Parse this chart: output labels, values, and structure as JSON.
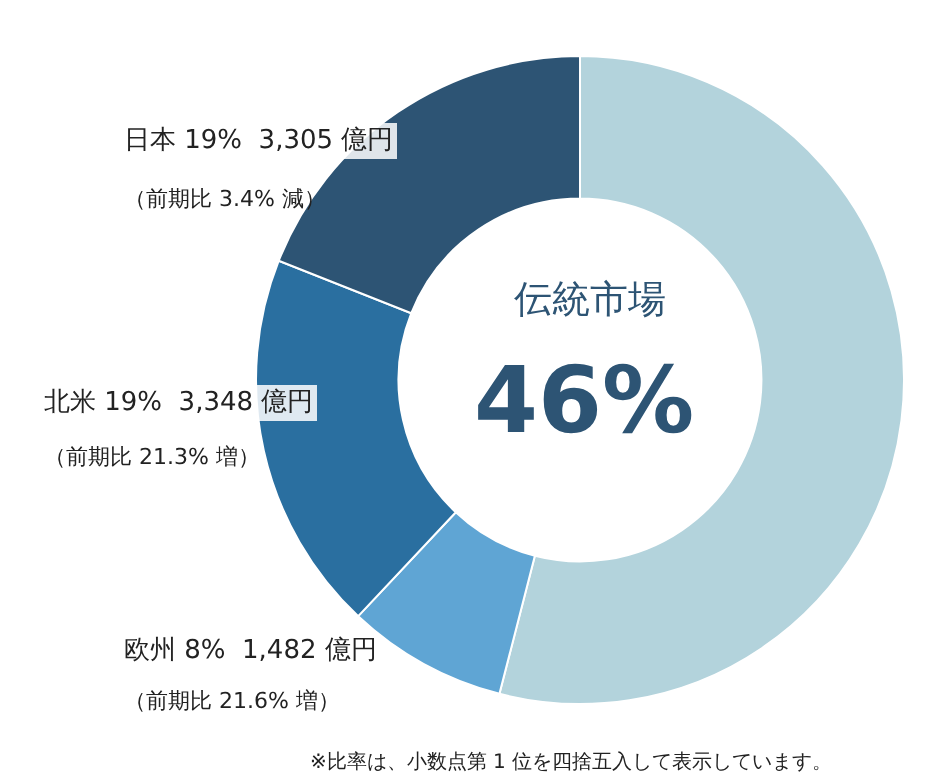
{
  "chart_data": {
    "type": "donut",
    "categories": [
      null,
      "欧州",
      "北米",
      "日本"
    ],
    "values": [
      54,
      8,
      19,
      19
    ],
    "colors": [
      "#b3d3dc",
      "#5fa5d4",
      "#2a6fa0",
      "#2d5474"
    ],
    "value_labels": [
      null,
      "8%  1,482 億円",
      "19%  3,348 億円",
      "19%  3,305 億円"
    ],
    "annotations": [
      "伝統市場",
      "46%",
      "（前期比 21.6% 増）",
      "（前期比 21.3% 増）",
      "（前期比 3.4% 減）",
      "※比率は、小数点第 1 位を四捨五入して表示しています。"
    ],
    "legend": false
  }
}
